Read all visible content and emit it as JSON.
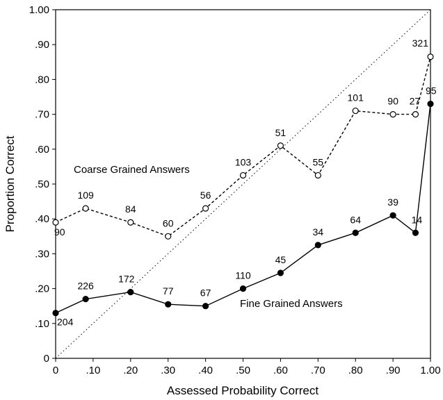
{
  "chart_data": {
    "type": "line",
    "xlabel": "Assessed Probability Correct",
    "ylabel": "Proportion Correct",
    "xlim": [
      0,
      1
    ],
    "ylim": [
      0,
      1
    ],
    "x_ticks": [
      {
        "value": 0,
        "label": "0"
      },
      {
        "value": 0.1,
        "label": ".10"
      },
      {
        "value": 0.2,
        "label": ".20"
      },
      {
        "value": 0.3,
        "label": ".30"
      },
      {
        "value": 0.4,
        "label": ".40"
      },
      {
        "value": 0.5,
        "label": ".50"
      },
      {
        "value": 0.6,
        "label": ".60"
      },
      {
        "value": 0.7,
        "label": ".70"
      },
      {
        "value": 0.8,
        "label": ".80"
      },
      {
        "value": 0.9,
        "label": ".90"
      },
      {
        "value": 1.0,
        "label": "1.00"
      }
    ],
    "y_ticks": [
      {
        "value": 0,
        "label": "0"
      },
      {
        "value": 0.1,
        "label": ".10"
      },
      {
        "value": 0.2,
        "label": ".20"
      },
      {
        "value": 0.3,
        "label": ".30"
      },
      {
        "value": 0.4,
        "label": ".40"
      },
      {
        "value": 0.5,
        "label": ".50"
      },
      {
        "value": 0.6,
        "label": ".60"
      },
      {
        "value": 0.7,
        "label": ".70"
      },
      {
        "value": 0.8,
        "label": ".80"
      },
      {
        "value": 0.9,
        "label": ".90"
      },
      {
        "value": 1.0,
        "label": "1.00"
      }
    ],
    "grid": false,
    "legend": "none",
    "reference_line": {
      "from": [
        0,
        0
      ],
      "to": [
        1,
        1
      ],
      "style": "dotted"
    },
    "series": [
      {
        "name": "Coarse Grained Answers",
        "marker": "open-circle",
        "line_style": "dashed",
        "points": [
          {
            "x": 0.0,
            "y": 0.39,
            "n": "90"
          },
          {
            "x": 0.08,
            "y": 0.43,
            "n": "109"
          },
          {
            "x": 0.2,
            "y": 0.39,
            "n": "84"
          },
          {
            "x": 0.3,
            "y": 0.35,
            "n": "60"
          },
          {
            "x": 0.4,
            "y": 0.43,
            "n": "56"
          },
          {
            "x": 0.5,
            "y": 0.525,
            "n": "103"
          },
          {
            "x": 0.6,
            "y": 0.61,
            "n": "51"
          },
          {
            "x": 0.7,
            "y": 0.525,
            "n": "55"
          },
          {
            "x": 0.8,
            "y": 0.71,
            "n": "101"
          },
          {
            "x": 0.9,
            "y": 0.7,
            "n": "90"
          },
          {
            "x": 0.96,
            "y": 0.7,
            "n": "27"
          },
          {
            "x": 1.0,
            "y": 0.865,
            "n": "321"
          }
        ]
      },
      {
        "name": "Fine Grained Answers",
        "marker": "filled-circle",
        "line_style": "solid",
        "points": [
          {
            "x": 0.0,
            "y": 0.13,
            "n": "204"
          },
          {
            "x": 0.08,
            "y": 0.17,
            "n": "226"
          },
          {
            "x": 0.2,
            "y": 0.19,
            "n": "172"
          },
          {
            "x": 0.3,
            "y": 0.155,
            "n": "77"
          },
          {
            "x": 0.4,
            "y": 0.15,
            "n": "67"
          },
          {
            "x": 0.5,
            "y": 0.2,
            "n": "110"
          },
          {
            "x": 0.6,
            "y": 0.245,
            "n": "45"
          },
          {
            "x": 0.7,
            "y": 0.325,
            "n": "34"
          },
          {
            "x": 0.8,
            "y": 0.36,
            "n": "64"
          },
          {
            "x": 0.9,
            "y": 0.41,
            "n": "39"
          },
          {
            "x": 0.96,
            "y": 0.36,
            "n": "14"
          },
          {
            "x": 1.0,
            "y": 0.73,
            "n": "95"
          }
        ]
      }
    ]
  }
}
